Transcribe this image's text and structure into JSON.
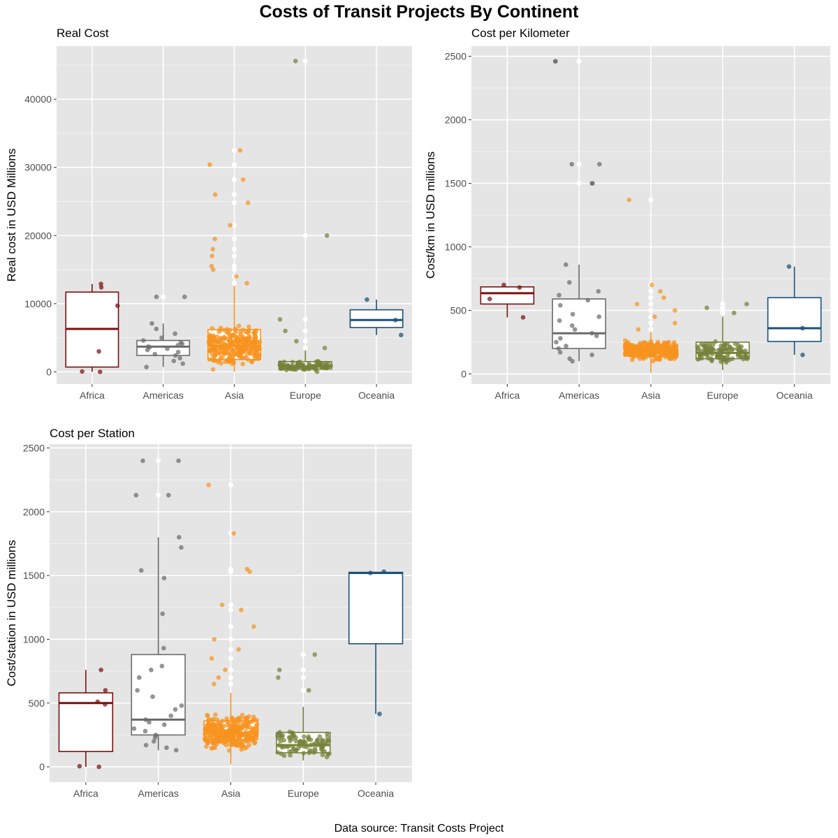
{
  "title": "Costs of Transit Projects By Continent",
  "caption": "Data source: Transit Costs Project",
  "colors": {
    "Africa": "#7b0f0f",
    "Americas": "#6b6b6b",
    "Asia": "#f7931e",
    "Europe": "#76813a",
    "Oceania": "#1b5078",
    "panel_bg": "#e5e5e5",
    "grid": "#ffffff"
  },
  "chart_data": [
    {
      "type": "boxplot",
      "title": "Real Cost",
      "ylabel": "Real cost in USD Millions",
      "categories": [
        "Africa",
        "Americas",
        "Asia",
        "Europe",
        "Oceania"
      ],
      "ylim": [
        -1800,
        47800
      ],
      "yticks": [
        0,
        10000,
        20000,
        30000,
        40000
      ],
      "grid": true,
      "legend": "none",
      "boxes": [
        {
          "q1": 700,
          "median": 6300,
          "q3": 11700,
          "lower": 0,
          "upper": 12900
        },
        {
          "q1": 2400,
          "median": 3700,
          "q3": 4600,
          "lower": 700,
          "upper": 7100
        },
        {
          "q1": 1800,
          "median": 3800,
          "q3": 6200,
          "lower": 0,
          "upper": 12600
        },
        {
          "q1": 400,
          "median": 800,
          "q3": 1500,
          "lower": 0,
          "upper": 3400
        },
        {
          "q1": 6500,
          "median": 7600,
          "q3": 9100,
          "lower": 5400,
          "upper": 10600
        }
      ],
      "outliers": [
        [],
        [
          11000
        ],
        [
          13000,
          14000,
          15000,
          15500,
          17000,
          18000,
          19500,
          21500,
          24800,
          26000,
          28200,
          30400,
          32500
        ],
        [
          3500,
          4500,
          6000,
          7700,
          20000,
          45600
        ],
        []
      ],
      "points": [
        [
          0,
          50,
          3000,
          9700,
          12400,
          12900
        ],
        [
          700,
          1200,
          1600,
          2000,
          2400,
          2600,
          2900,
          3200,
          3400,
          3600,
          3700,
          3900,
          4100,
          4300,
          4600,
          5000,
          5600,
          6300,
          7100,
          11000
        ],
        [],
        [],
        [
          5400,
          7600,
          10600
        ]
      ],
      "dense": [
        null,
        null,
        {
          "count": 280,
          "center": 3800,
          "spread": 2600,
          "min": 0,
          "max": 12600
        },
        {
          "count": 90,
          "center": 800,
          "spread": 700,
          "min": 0,
          "max": 3400
        },
        null
      ]
    },
    {
      "type": "boxplot",
      "title": "Cost per Kilometer",
      "ylabel": "Cost/km in USD millions",
      "categories": [
        "Africa",
        "Americas",
        "Asia",
        "Europe",
        "Oceania"
      ],
      "ylim": [
        -80,
        2580
      ],
      "yticks": [
        0,
        500,
        1000,
        1500,
        2000,
        2500
      ],
      "grid": true,
      "legend": "none",
      "boxes": [
        {
          "q1": 550,
          "median": 635,
          "q3": 685,
          "lower": 445,
          "upper": 690
        },
        {
          "q1": 200,
          "median": 320,
          "q3": 590,
          "lower": 100,
          "upper": 860
        },
        {
          "q1": 140,
          "median": 180,
          "q3": 225,
          "lower": 10,
          "upper": 330
        },
        {
          "q1": 120,
          "median": 165,
          "q3": 250,
          "lower": 30,
          "upper": 450
        },
        {
          "q1": 255,
          "median": 360,
          "q3": 600,
          "lower": 150,
          "upper": 845
        }
      ],
      "outliers": [
        [],
        [
          1500,
          1650,
          2460
        ],
        [
          350,
          400,
          450,
          500,
          550,
          600,
          650,
          700,
          1370
        ],
        [
          480,
          520,
          550
        ],
        []
      ],
      "points": [
        [
          445,
          590,
          680,
          700
        ],
        [
          100,
          120,
          150,
          170,
          200,
          220,
          250,
          280,
          300,
          320,
          350,
          380,
          420,
          450,
          470,
          540,
          580,
          620,
          650,
          720,
          860,
          1500,
          1650,
          2460
        ],
        [],
        [],
        [
          150,
          360,
          845
        ]
      ],
      "dense": [
        null,
        null,
        {
          "count": 300,
          "center": 180,
          "spread": 70,
          "min": 10,
          "max": 330
        },
        {
          "count": 110,
          "center": 170,
          "spread": 90,
          "min": 30,
          "max": 450
        },
        null
      ]
    },
    {
      "type": "boxplot",
      "title": "Cost per Station",
      "ylabel": "Cost/station in USD millions",
      "categories": [
        "Africa",
        "Americas",
        "Asia",
        "Europe",
        "Oceania"
      ],
      "ylim": [
        -120,
        2530
      ],
      "yticks": [
        0,
        500,
        1000,
        1500,
        2000,
        2500
      ],
      "grid": true,
      "legend": "none",
      "boxes": [
        {
          "q1": 120,
          "median": 500,
          "q3": 580,
          "lower": 0,
          "upper": 760
        },
        {
          "q1": 250,
          "median": 370,
          "q3": 880,
          "lower": 130,
          "upper": 1800
        },
        {
          "q1": 215,
          "median": 265,
          "q3": 360,
          "lower": 20,
          "upper": 580
        },
        {
          "q1": 110,
          "median": 170,
          "q3": 270,
          "lower": 50,
          "upper": 470
        },
        {
          "q1": 965,
          "median": 1520,
          "q3": 1525,
          "lower": 415,
          "upper": 1530
        }
      ],
      "outliers": [
        [],
        [
          2130,
          2400
        ],
        [
          650,
          700,
          760,
          850,
          920,
          1000,
          1100,
          1230,
          1270,
          1530,
          1550,
          1830,
          2210
        ],
        [
          600,
          700,
          760,
          880
        ],
        []
      ],
      "points": [
        [
          0,
          5,
          490,
          510,
          600,
          760
        ],
        [
          130,
          150,
          170,
          200,
          230,
          250,
          280,
          300,
          330,
          350,
          370,
          400,
          450,
          480,
          550,
          600,
          700,
          760,
          790,
          930,
          1200,
          1480,
          1540,
          1720,
          1800,
          2130,
          2400
        ],
        [],
        [],
        [
          415,
          1520,
          1530
        ]
      ],
      "dense": [
        null,
        null,
        {
          "count": 300,
          "center": 270,
          "spread": 120,
          "min": 20,
          "max": 580
        },
        {
          "count": 90,
          "center": 180,
          "spread": 110,
          "min": 50,
          "max": 470
        },
        null
      ]
    }
  ]
}
